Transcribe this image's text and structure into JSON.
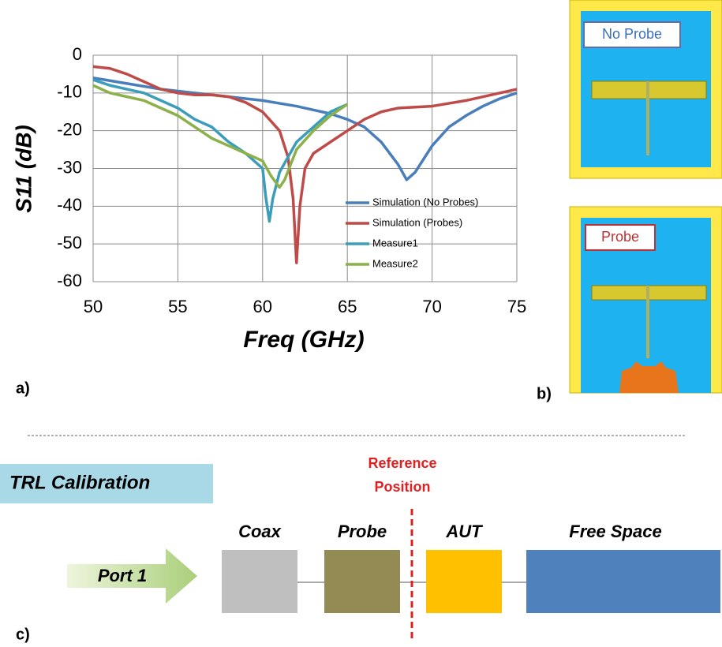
{
  "chart_data": {
    "type": "line",
    "xlabel": "Freq (GHz)",
    "ylabel": "S11 (dB)",
    "xlim": [
      50,
      75
    ],
    "xticks": [
      50,
      55,
      60,
      65,
      70,
      75
    ],
    "ylim": [
      -60,
      0
    ],
    "yticks": [
      -60,
      -50,
      -40,
      -30,
      -20,
      -10,
      0
    ],
    "grid": true,
    "legend": "right",
    "series": [
      {
        "name": "Simulation (No Probes)",
        "color": "#4a7ebb",
        "x": [
          50,
          52,
          54,
          56,
          58,
          60,
          62,
          64,
          65,
          66,
          67,
          68,
          68.5,
          69,
          70,
          71,
          72,
          73,
          74,
          75
        ],
        "values": [
          -6,
          -7.5,
          -9,
          -10,
          -11,
          -12,
          -13.5,
          -15.5,
          -17,
          -19,
          -23,
          -29,
          -33,
          -31,
          -24,
          -19,
          -16,
          -13.5,
          -11.5,
          -10
        ]
      },
      {
        "name": "Simulation (Probes)",
        "color": "#be4b48",
        "x": [
          50,
          51,
          52,
          53,
          54,
          55,
          56,
          57,
          58,
          59,
          60,
          61,
          61.5,
          61.8,
          62,
          62.2,
          62.5,
          63,
          64,
          65,
          66,
          67,
          68,
          70,
          72,
          74,
          75
        ],
        "values": [
          -3,
          -3.5,
          -5,
          -7,
          -9,
          -10,
          -10.5,
          -10.5,
          -11,
          -12.5,
          -15,
          -20,
          -27,
          -38,
          -55,
          -40,
          -30,
          -26,
          -23,
          -20,
          -17,
          -15,
          -14,
          -13.5,
          -12,
          -10,
          -9
        ]
      },
      {
        "name": "Measure1",
        "color": "#3c9dba",
        "x": [
          50,
          51,
          52,
          53,
          54,
          55,
          56,
          57,
          58,
          59,
          59.5,
          60,
          60.2,
          60.4,
          60.6,
          61,
          61.5,
          62,
          63,
          64,
          65
        ],
        "values": [
          -6.5,
          -8,
          -9,
          -10,
          -12,
          -14,
          -17,
          -19,
          -23,
          -26,
          -28,
          -30,
          -38,
          -44,
          -38,
          -31,
          -27,
          -23,
          -19,
          -15,
          -13
        ]
      },
      {
        "name": "Measure2",
        "color": "#8cb04a",
        "x": [
          50,
          51,
          52,
          53,
          54,
          55,
          56,
          57,
          58,
          59,
          60,
          60.5,
          61,
          61.3,
          62,
          63,
          64,
          65
        ],
        "values": [
          -8,
          -10,
          -11,
          -12,
          -14,
          -16,
          -19,
          -22,
          -24,
          -26,
          -28,
          -32,
          -35,
          -33,
          -25,
          -20,
          -16,
          -13
        ]
      }
    ]
  },
  "panel_labels": [
    "a)",
    "b)",
    "c)"
  ],
  "antenna_views": [
    "No Probe",
    "Probe"
  ],
  "calibration": {
    "title": "TRL Calibration",
    "reference": [
      "Reference",
      "Position"
    ],
    "port": "Port 1",
    "blocks": [
      "Coax",
      "Probe",
      "AUT",
      "Free Space"
    ]
  }
}
